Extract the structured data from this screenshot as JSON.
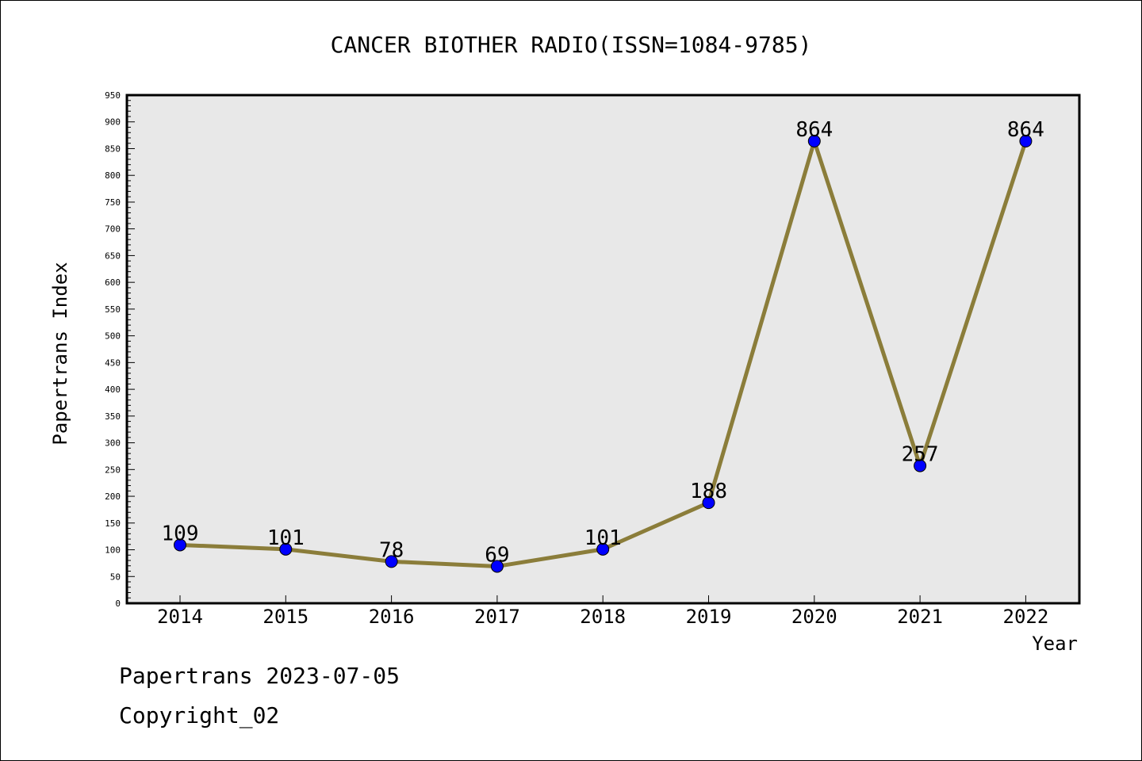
{
  "chart_data": {
    "type": "line",
    "title": "CANCER BIOTHER RADIO(ISSN=1084-9785)",
    "xlabel": "Year",
    "ylabel": "Papertrans Index",
    "categories": [
      "2014",
      "2015",
      "2016",
      "2017",
      "2018",
      "2019",
      "2020",
      "2021",
      "2022"
    ],
    "series": [
      {
        "values": [
          109,
          101,
          78,
          69,
          101,
          188,
          864,
          257,
          864
        ],
        "line_color": "#8b7d3a",
        "marker_color": "#0000ff"
      }
    ],
    "data_labels": [
      "109",
      "101",
      "78",
      "69",
      "101",
      "188",
      "864",
      "257",
      "864"
    ],
    "ylim": [
      0,
      950
    ],
    "y_major_step": 50,
    "y_minor_step": 10,
    "y_ticks": [
      "0",
      "50",
      "100",
      "150",
      "200",
      "250",
      "300",
      "350",
      "400",
      "450",
      "500",
      "550",
      "600",
      "650",
      "700",
      "750",
      "800",
      "850",
      "900",
      "950"
    ],
    "grid": false,
    "plot_background": "#e8e8e8"
  },
  "footer": {
    "date_text": "Papertrans 2023-07-05",
    "copyright_text": "Copyright_02"
  }
}
